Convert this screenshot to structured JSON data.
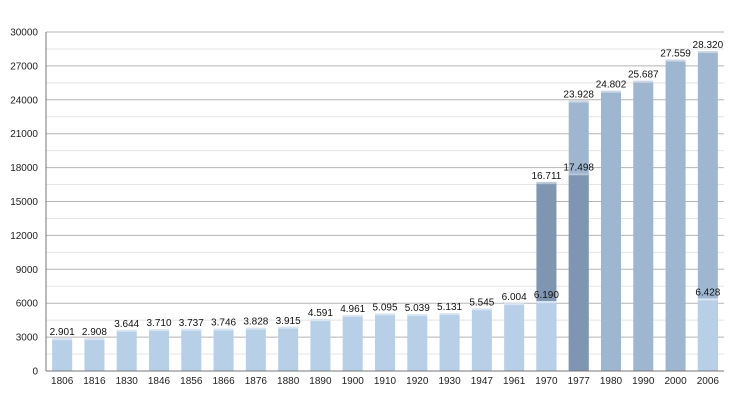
{
  "chart_data": {
    "type": "bar",
    "title": "",
    "xlabel": "",
    "ylabel": "",
    "ylim": [
      0,
      30000
    ],
    "y_ticks": [
      0,
      3000,
      6000,
      9000,
      12000,
      15000,
      18000,
      21000,
      24000,
      27000,
      30000
    ],
    "grid": true,
    "legend": "none",
    "categories": [
      "1806",
      "1816",
      "1830",
      "1846",
      "1856",
      "1866",
      "1876",
      "1880",
      "1890",
      "1900",
      "1910",
      "1920",
      "1930",
      "1947",
      "1961",
      "1970",
      "1977",
      "1980",
      "1990",
      "2000",
      "2006"
    ],
    "series": [
      {
        "color": "#b8cfe8",
        "values": [
          2901,
          2908,
          3644,
          3710,
          3737,
          3746,
          3828,
          3915,
          4591,
          4961,
          5095,
          5039,
          5131,
          5545,
          6004,
          6190,
          null,
          null,
          null,
          null,
          6428
        ],
        "labels": [
          "2.901",
          "2.908",
          "3.644",
          "3.710",
          "3.737",
          "3.746",
          "3.828",
          "3.915",
          "4.591",
          "4.961",
          "5.095",
          "5.039",
          "5.131",
          "5.545",
          "6.004",
          "6.190",
          "",
          "",
          "",
          "",
          "6.428"
        ]
      },
      {
        "color": "#7e96b2",
        "values": [
          null,
          null,
          null,
          null,
          null,
          null,
          null,
          null,
          null,
          null,
          null,
          null,
          null,
          null,
          null,
          16711,
          17498,
          null,
          null,
          null,
          null
        ],
        "labels": [
          "",
          "",
          "",
          "",
          "",
          "",
          "",
          "",
          "",
          "",
          "",
          "",
          "",
          "",
          "",
          "16.711",
          "17.498",
          "",
          "",
          "",
          ""
        ]
      },
      {
        "color": "#9fb6d0",
        "values": [
          null,
          null,
          null,
          null,
          null,
          null,
          null,
          null,
          null,
          null,
          null,
          null,
          null,
          null,
          null,
          null,
          23928,
          24802,
          25687,
          27559,
          28320
        ],
        "labels": [
          "",
          "",
          "",
          "",
          "",
          "",
          "",
          "",
          "",
          "",
          "",
          "",
          "",
          "",
          "",
          "",
          "23.928",
          "24.802",
          "25.687",
          "27.559",
          "28.320"
        ]
      }
    ]
  }
}
